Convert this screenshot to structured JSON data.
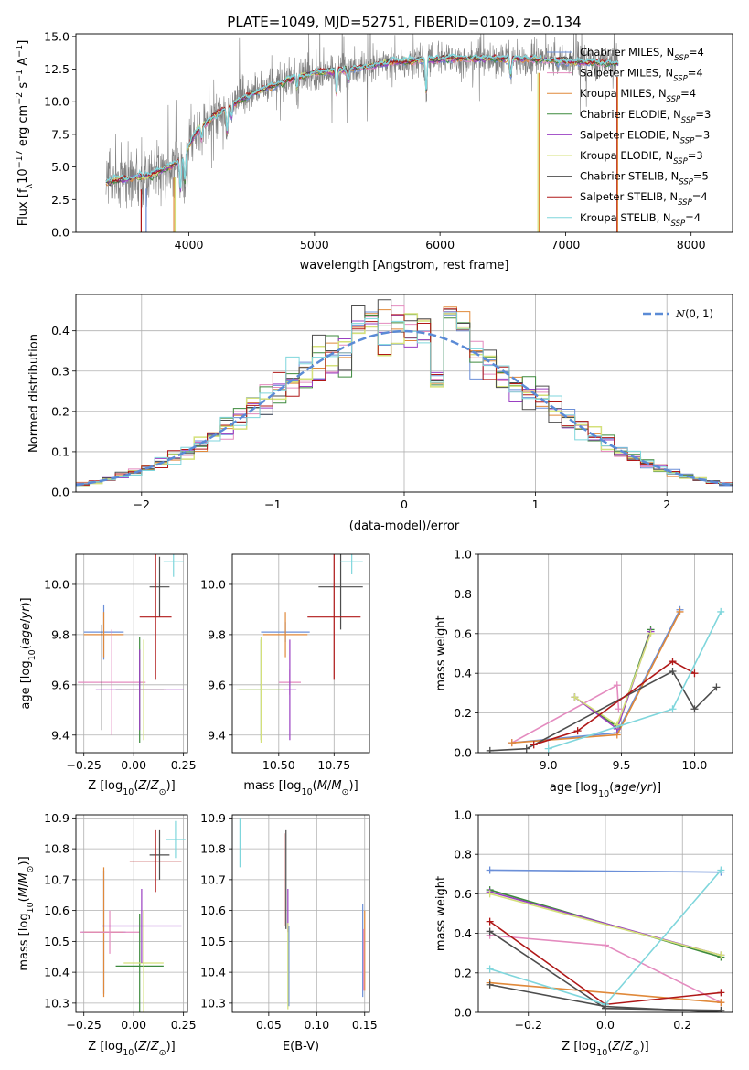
{
  "figure": {
    "title": "PLATE=1049, MJD=52751, FIBERID=0109, z=0.134"
  },
  "colors": {
    "chabrier_miles": "#6b8fd8",
    "salpeter_miles": "#e48bbf",
    "kroupa_miles": "#e0893a",
    "chabrier_elodie": "#3d8a3d",
    "salpeter_elodie": "#9a3fc2",
    "kroupa_elodie": "#d4e07a",
    "chabrier_stelib": "#4d4d4d",
    "salpeter_stelib": "#b01818",
    "kroupa_stelib": "#7fd6dc",
    "data": "#808080",
    "grid": "#b0b0b0"
  },
  "legend": [
    {
      "key": "chabrier_miles",
      "label": "Chabrier MILES, N",
      "sub": "SSP",
      "tail": "=4"
    },
    {
      "key": "salpeter_miles",
      "label": "Salpeter MILES, N",
      "sub": "SSP",
      "tail": "=4"
    },
    {
      "key": "kroupa_miles",
      "label": "Kroupa MILES, N",
      "sub": "SSP",
      "tail": "=4"
    },
    {
      "key": "chabrier_elodie",
      "label": "Chabrier ELODIE, N",
      "sub": "SSP",
      "tail": "=3"
    },
    {
      "key": "salpeter_elodie",
      "label": "Salpeter ELODIE, N",
      "sub": "SSP",
      "tail": "=3"
    },
    {
      "key": "kroupa_elodie",
      "label": "Kroupa ELODIE, N",
      "sub": "SSP",
      "tail": "=3"
    },
    {
      "key": "chabrier_stelib",
      "label": "Chabrier STELIB, N",
      "sub": "SSP",
      "tail": "=5"
    },
    {
      "key": "salpeter_stelib",
      "label": "Salpeter STELIB, N",
      "sub": "SSP",
      "tail": "=4"
    },
    {
      "key": "kroupa_stelib",
      "label": "Kroupa STELIB, N",
      "sub": "SSP",
      "tail": "=4"
    }
  ],
  "chart_data": [
    {
      "id": "spectrum",
      "type": "line",
      "title": "PLATE=1049, MJD=52751, FIBERID=0109, z=0.134",
      "xlabel": "wavelength [Angstrom, rest frame]",
      "ylabel": "Flux [f",
      "ylabel_parts": {
        "a": "Flux [f",
        "sub": "λ",
        "b": "10",
        "sup": "−17",
        "c": " erg cm",
        "sup2": "−2",
        "d": " s",
        "sup3": "−1",
        "e": " A",
        "sup4": "−1",
        "f": "]"
      },
      "xlim": [
        3100,
        8330
      ],
      "ylim": [
        0,
        15.2
      ],
      "xticks": [
        4000,
        5000,
        6000,
        7000,
        8000
      ],
      "yticks": [
        0.0,
        2.5,
        5.0,
        7.5,
        10.0,
        12.5,
        15.0
      ],
      "ytick_labels": [
        "0.0",
        "2.5",
        "5.0",
        "7.5",
        "10.0",
        "12.5",
        "15.0"
      ],
      "grid": false,
      "legend_position": "right",
      "data_range": [
        3340,
        7420
      ],
      "continuum_anchors": [
        [
          3340,
          3.8
        ],
        [
          3500,
          4.1
        ],
        [
          3700,
          4.4
        ],
        [
          3850,
          5.0
        ],
        [
          3950,
          5.6
        ],
        [
          4050,
          7.6
        ],
        [
          4200,
          8.9
        ],
        [
          4400,
          10.1
        ],
        [
          4600,
          11.0
        ],
        [
          4800,
          11.7
        ],
        [
          5000,
          12.2
        ],
        [
          5300,
          12.5
        ],
        [
          5600,
          13.0
        ],
        [
          5900,
          13.2
        ],
        [
          6200,
          13.3
        ],
        [
          6600,
          13.3
        ],
        [
          7000,
          13.1
        ],
        [
          7420,
          12.9
        ]
      ],
      "absorption_lines": [
        {
          "wave": 3933,
          "depth": 2.2
        },
        {
          "wave": 3968,
          "depth": 2.0
        },
        {
          "wave": 4101,
          "depth": 0.9
        },
        {
          "wave": 4304,
          "depth": 1.8
        },
        {
          "wave": 4340,
          "depth": 0.9
        },
        {
          "wave": 4861,
          "depth": 0.8
        },
        {
          "wave": 5175,
          "depth": 1.7
        },
        {
          "wave": 5270,
          "depth": 0.8
        },
        {
          "wave": 5890,
          "depth": 2.5
        },
        {
          "wave": 6563,
          "depth": 1.2
        }
      ],
      "model_dropouts": [
        {
          "wave": 3620,
          "series": "salpeter_stelib"
        },
        {
          "wave": 3660,
          "series": "chabrier_miles"
        },
        {
          "wave": 3880,
          "series": "kroupa_miles"
        },
        {
          "wave": 3890,
          "series": "kroupa_elodie"
        },
        {
          "wave": 6780,
          "series": "kroupa_elodie"
        },
        {
          "wave": 6790,
          "series": "kroupa_miles"
        },
        {
          "wave": 7410,
          "series": "salpeter_stelib"
        },
        {
          "wave": 7415,
          "series": "kroupa_miles"
        }
      ]
    },
    {
      "id": "residuals",
      "type": "step",
      "xlabel": "(data-model)/error",
      "ylabel": "Normed distribution",
      "xlim": [
        -2.5,
        2.5
      ],
      "ylim": [
        0,
        0.49
      ],
      "xticks": [
        -2,
        -1,
        0,
        1,
        2
      ],
      "xtick_labels": [
        "−2",
        "−1",
        "0",
        "1",
        "2"
      ],
      "yticks": [
        0.0,
        0.1,
        0.2,
        0.3,
        0.4
      ],
      "ytick_labels": [
        "0.0",
        "0.1",
        "0.2",
        "0.3",
        "0.4"
      ],
      "grid": true,
      "bin_width": 0.1,
      "bin_start": -2.5,
      "reference": {
        "label": "N(0,1)",
        "mu": 0,
        "sigma": 1,
        "color": "#5b8bd6"
      },
      "legend_position": "top-right",
      "anomalies": [
        {
          "center": -0.35,
          "factor": 1.13
        },
        {
          "center": -0.25,
          "factor": 1.1
        },
        {
          "center": 0.25,
          "factor": 0.72
        },
        {
          "center": 0.35,
          "factor": 1.18
        },
        {
          "center": 0.45,
          "factor": 1.15
        }
      ]
    },
    {
      "id": "age_vs_Z",
      "type": "errorbar",
      "xlabel": "Z [log10(Z/Z⊙)]",
      "ylabel": "age [log10(age/yr)]",
      "xlim": [
        -0.29,
        0.27
      ],
      "ylim": [
        9.33,
        10.12
      ],
      "xticks": [
        -0.25,
        0.0,
        0.25
      ],
      "xtick_labels": [
        "−0.25",
        "0.00",
        "0.25"
      ],
      "yticks": [
        9.4,
        9.6,
        9.8,
        10.0
      ],
      "ytick_labels": [
        "9.4",
        "9.6",
        "9.8",
        "10.0"
      ],
      "grid": true,
      "points": [
        {
          "series": "chabrier_miles",
          "x": -0.15,
          "y": 9.81,
          "xerr": 0.1,
          "yerr": 0.11
        },
        {
          "series": "kroupa_miles",
          "x": -0.15,
          "y": 9.8,
          "xerr": 0.1,
          "yerr": 0.09
        },
        {
          "series": "salpeter_miles",
          "x": -0.11,
          "y": 9.61,
          "xerr": 0.17,
          "yerr": 0.21
        },
        {
          "series": "chabrier_elodie",
          "x": 0.03,
          "y": 9.58,
          "xerr": 0.12,
          "yerr": 0.21
        },
        {
          "series": "kroupa_elodie",
          "x": 0.05,
          "y": 9.58,
          "xerr": 0.11,
          "yerr": 0.2
        },
        {
          "series": "salpeter_elodie",
          "x": 0.03,
          "y": 9.58,
          "xerr": 0.22,
          "yerr": 0.16
        },
        {
          "series": "chabrier_stelib",
          "x": 0.13,
          "y": 9.99,
          "xerr": 0.05,
          "yerr": 0.12
        },
        {
          "series": "salpeter_stelib",
          "x": 0.11,
          "y": 9.87,
          "xerr": 0.08,
          "yerr": 0.25
        },
        {
          "series": "kroupa_stelib",
          "x": 0.2,
          "y": 10.09,
          "xerr": 0.05,
          "yerr": 0.06
        },
        {
          "series": "chabrier_stelib",
          "x": -0.16,
          "y": 9.63,
          "xerr": 0.0,
          "yerr": 0.21
        }
      ]
    },
    {
      "id": "age_vs_mass",
      "type": "errorbar",
      "xlabel": "mass [log10(M/M⊙)]",
      "ylabel": "",
      "xlim": [
        10.29,
        10.91
      ],
      "ylim": [
        9.33,
        10.12
      ],
      "xticks": [
        10.5,
        10.75
      ],
      "xtick_labels": [
        "10.50",
        "10.75"
      ],
      "yticks": [
        9.4,
        9.6,
        9.8,
        10.0
      ],
      "ytick_labels": [
        "9.4",
        "9.6",
        "9.8",
        "10.0"
      ],
      "grid": true,
      "points": [
        {
          "series": "chabrier_miles",
          "x": 10.53,
          "y": 9.81,
          "xerr": 0.11,
          "yerr": 0.04
        },
        {
          "series": "kroupa_miles",
          "x": 10.53,
          "y": 9.8,
          "xerr": 0.1,
          "yerr": 0.09
        },
        {
          "series": "salpeter_miles",
          "x": 10.55,
          "y": 9.61,
          "xerr": 0.05,
          "yerr": 0.05
        },
        {
          "series": "chabrier_elodie",
          "x": 10.42,
          "y": 9.58,
          "xerr": 0.1,
          "yerr": 0.2
        },
        {
          "series": "kroupa_elodie",
          "x": 10.42,
          "y": 9.58,
          "xerr": 0.11,
          "yerr": 0.21
        },
        {
          "series": "salpeter_elodie",
          "x": 10.55,
          "y": 9.58,
          "xerr": 0.03,
          "yerr": 0.2
        },
        {
          "series": "chabrier_stelib",
          "x": 10.78,
          "y": 9.99,
          "xerr": 0.1,
          "yerr": 0.17
        },
        {
          "series": "salpeter_stelib",
          "x": 10.75,
          "y": 9.87,
          "xerr": 0.12,
          "yerr": 0.25
        },
        {
          "series": "kroupa_stelib",
          "x": 10.83,
          "y": 10.09,
          "xerr": 0.05,
          "yerr": 0.05
        }
      ]
    },
    {
      "id": "weight_vs_age",
      "type": "line",
      "xlabel": "age [log10(age/yr)]",
      "ylabel": "mass weight",
      "xlim": [
        8.52,
        10.26
      ],
      "ylim": [
        0,
        1.0
      ],
      "xticks": [
        9.0,
        9.5,
        10.0
      ],
      "xtick_labels": [
        "9.0",
        "9.5",
        "10.0"
      ],
      "yticks": [
        0.0,
        0.2,
        0.4,
        0.6,
        0.8,
        1.0
      ],
      "ytick_labels": [
        "0.0",
        "0.2",
        "0.4",
        "0.6",
        "0.8",
        "1.0"
      ],
      "grid": true,
      "series": [
        {
          "series": "chabrier_miles",
          "x": [
            8.75,
            9.47,
            9.9
          ],
          "y": [
            0.05,
            0.1,
            0.72
          ]
        },
        {
          "series": "salpeter_miles",
          "x": [
            8.75,
            9.47,
            9.48
          ],
          "y": [
            0.05,
            0.34,
            0.22
          ]
        },
        {
          "series": "kroupa_miles",
          "x": [
            8.75,
            9.47,
            9.9
          ],
          "y": [
            0.05,
            0.09,
            0.71
          ]
        },
        {
          "series": "chabrier_elodie",
          "x": [
            9.18,
            9.47,
            9.7
          ],
          "y": [
            0.28,
            0.13,
            0.62
          ]
        },
        {
          "series": "salpeter_elodie",
          "x": [
            9.18,
            9.47,
            9.7
          ],
          "y": [
            0.28,
            0.12,
            0.61
          ]
        },
        {
          "series": "kroupa_elodie",
          "x": [
            9.18,
            9.47,
            9.7
          ],
          "y": [
            0.28,
            0.14,
            0.6
          ]
        },
        {
          "series": "chabrier_stelib",
          "x": [
            8.6,
            8.85,
            9.85,
            10.0,
            10.15
          ],
          "y": [
            0.01,
            0.02,
            0.41,
            0.22,
            0.33
          ]
        },
        {
          "series": "salpeter_stelib",
          "x": [
            8.9,
            9.2,
            9.85,
            10.0
          ],
          "y": [
            0.04,
            0.11,
            0.46,
            0.4
          ]
        },
        {
          "series": "kroupa_stelib",
          "x": [
            9.0,
            9.85,
            10.18
          ],
          "y": [
            0.02,
            0.22,
            0.71
          ]
        }
      ]
    },
    {
      "id": "mass_vs_Z",
      "type": "errorbar",
      "xlabel": "Z [log10(Z/Z⊙)]",
      "ylabel": "mass [log10(M/M⊙)]",
      "xlim": [
        -0.29,
        0.27
      ],
      "ylim": [
        10.27,
        10.91
      ],
      "xticks": [
        -0.25,
        0.0,
        0.25
      ],
      "xtick_labels": [
        "−0.25",
        "0.00",
        "0.25"
      ],
      "yticks": [
        10.3,
        10.4,
        10.5,
        10.6,
        10.7,
        10.8,
        10.9
      ],
      "ytick_labels": [
        "10.3",
        "10.4",
        "10.5",
        "10.6",
        "10.7",
        "10.8",
        "10.9"
      ],
      "grid": true,
      "points": [
        {
          "series": "chabrier_miles",
          "x": -0.15,
          "y": 10.53,
          "xerr": 0.11,
          "yerr": 0.2
        },
        {
          "series": "kroupa_miles",
          "x": -0.15,
          "y": 10.53,
          "xerr": 0.1,
          "yerr": 0.21
        },
        {
          "series": "salpeter_miles",
          "x": -0.12,
          "y": 10.53,
          "xerr": 0.15,
          "yerr": 0.07
        },
        {
          "series": "chabrier_elodie",
          "x": 0.03,
          "y": 10.42,
          "xerr": 0.12,
          "yerr": 0.17
        },
        {
          "series": "kroupa_elodie",
          "x": 0.05,
          "y": 10.43,
          "xerr": 0.1,
          "yerr": 0.17
        },
        {
          "series": "salpeter_elodie",
          "x": 0.04,
          "y": 10.55,
          "xerr": 0.2,
          "yerr": 0.12
        },
        {
          "series": "chabrier_stelib",
          "x": 0.13,
          "y": 10.78,
          "xerr": 0.05,
          "yerr": 0.08
        },
        {
          "series": "salpeter_stelib",
          "x": 0.11,
          "y": 10.76,
          "xerr": 0.13,
          "yerr": 0.1
        },
        {
          "series": "kroupa_stelib",
          "x": 0.21,
          "y": 10.83,
          "xerr": 0.05,
          "yerr": 0.06
        }
      ]
    },
    {
      "id": "mass_vs_ebv",
      "type": "errorbar",
      "xlabel": "E(B-V)",
      "ylabel": "",
      "xlim": [
        0.012,
        0.155
      ],
      "ylim": [
        10.27,
        10.91
      ],
      "xticks": [
        0.05,
        0.1,
        0.15
      ],
      "xtick_labels": [
        "0.05",
        "0.10",
        "0.15"
      ],
      "yticks": [
        10.3,
        10.4,
        10.5,
        10.6,
        10.7,
        10.8,
        10.9
      ],
      "ytick_labels": [
        "10.3",
        "10.4",
        "10.5",
        "10.6",
        "10.7",
        "10.8",
        "10.9"
      ],
      "grid": true,
      "points": [
        {
          "series": "kroupa_stelib",
          "x": 0.02,
          "y": 10.82,
          "xerr": 0.0,
          "yerr": 0.08
        },
        {
          "series": "salpeter_stelib",
          "x": 0.066,
          "y": 10.7,
          "xerr": 0.0,
          "yerr": 0.15
        },
        {
          "series": "chabrier_stelib",
          "x": 0.068,
          "y": 10.7,
          "xerr": 0.0,
          "yerr": 0.16
        },
        {
          "series": "salpeter_elodie",
          "x": 0.07,
          "y": 10.6,
          "xerr": 0.0,
          "yerr": 0.07
        },
        {
          "series": "chabrier_miles",
          "x": 0.071,
          "y": 10.42,
          "xerr": 0.0,
          "yerr": 0.13
        },
        {
          "series": "kroupa_elodie",
          "x": 0.07,
          "y": 10.42,
          "xerr": 0.0,
          "yerr": 0.14
        },
        {
          "series": "chabrier_miles",
          "x": 0.148,
          "y": 10.47,
          "xerr": 0.0,
          "yerr": 0.15
        },
        {
          "series": "kroupa_miles",
          "x": 0.15,
          "y": 10.47,
          "xerr": 0.0,
          "yerr": 0.13
        },
        {
          "series": "salpeter_miles",
          "x": 0.149,
          "y": 10.44,
          "xerr": 0.0,
          "yerr": 0.1
        }
      ]
    },
    {
      "id": "weight_vs_Z",
      "type": "line",
      "xlabel": "Z [log10(Z/Z⊙)]",
      "ylabel": "mass weight",
      "xlim": [
        -0.33,
        0.33
      ],
      "ylim": [
        0,
        1.0
      ],
      "xticks": [
        -0.2,
        0.0,
        0.2
      ],
      "xtick_labels": [
        "−0.2",
        "0.0",
        "0.2"
      ],
      "yticks": [
        0.0,
        0.2,
        0.4,
        0.6,
        0.8,
        1.0
      ],
      "ytick_labels": [
        "0.0",
        "0.2",
        "0.4",
        "0.6",
        "0.8",
        "1.0"
      ],
      "grid": true,
      "series": [
        {
          "series": "chabrier_miles",
          "x": [
            -0.3,
            0.3
          ],
          "y": [
            0.72,
            0.71
          ]
        },
        {
          "series": "salpeter_miles",
          "x": [
            -0.3,
            0.0,
            0.3
          ],
          "y": [
            0.39,
            0.34,
            0.05
          ]
        },
        {
          "series": "kroupa_miles",
          "x": [
            -0.3,
            0.3
          ],
          "y": [
            0.15,
            0.05
          ]
        },
        {
          "series": "chabrier_elodie",
          "x": [
            -0.3,
            0.3
          ],
          "y": [
            0.62,
            0.28
          ]
        },
        {
          "series": "salpeter_elodie",
          "x": [
            -0.3,
            0.3
          ],
          "y": [
            0.61,
            0.29
          ]
        },
        {
          "series": "kroupa_elodie",
          "x": [
            -0.3,
            0.3
          ],
          "y": [
            0.6,
            0.29
          ]
        },
        {
          "series": "chabrier_stelib",
          "x": [
            -0.3,
            0.0,
            0.3
          ],
          "y": [
            0.41,
            0.02,
            0.01
          ]
        },
        {
          "series": "salpeter_stelib",
          "x": [
            -0.3,
            0.0,
            0.3
          ],
          "y": [
            0.46,
            0.04,
            0.1
          ]
        },
        {
          "series": "kroupa_stelib",
          "x": [
            -0.3,
            0.0,
            0.3
          ],
          "y": [
            0.22,
            0.04,
            0.72
          ]
        },
        {
          "series": "chabrier_stelib",
          "x": [
            -0.3,
            0.0,
            0.3
          ],
          "y": [
            0.14,
            0.03,
            0.0
          ]
        }
      ]
    }
  ]
}
